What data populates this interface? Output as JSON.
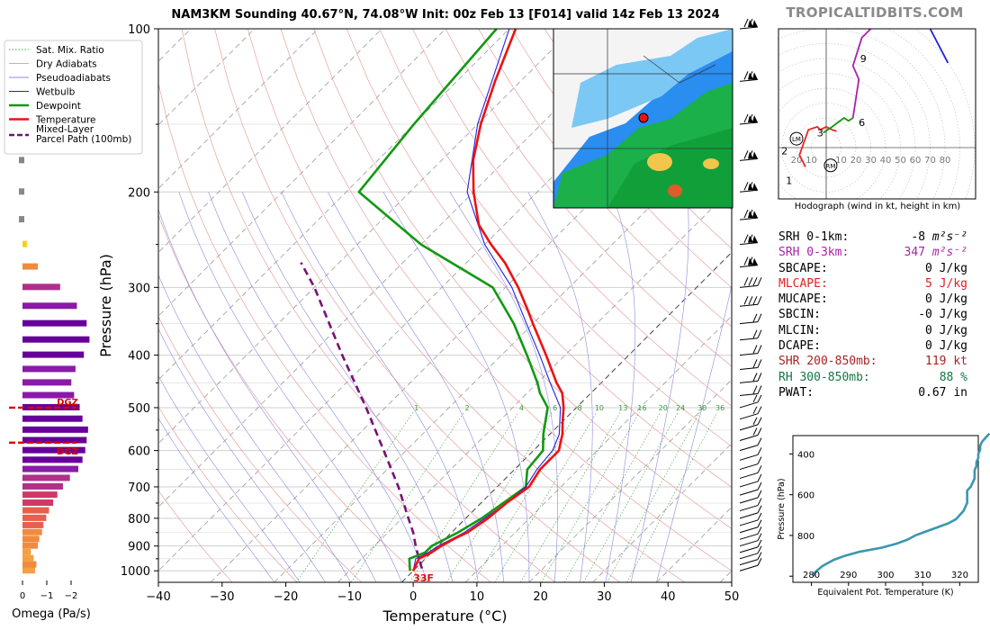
{
  "title": "NAM3KM Sounding 40.67°N, 74.08°W Init: 00z Feb 13 [F014] valid 14z Feb 13 2024",
  "brand": "TROPICALTIDBITS.COM",
  "colors": {
    "temperature": "#ee1111",
    "dewpoint": "#119911",
    "wetbulb": "#2222dd",
    "parcel": "#771177",
    "theta_e": "#3a97b0"
  },
  "legend": [
    {
      "label": "Sat. Mix. Ratio",
      "style": "dotted-green"
    },
    {
      "label": "Dry Adiabats",
      "style": "thin-red"
    },
    {
      "label": "Pseudoadiabats",
      "style": "thin-blue"
    },
    {
      "label": "Wetbulb",
      "style": "blue"
    },
    {
      "label": "Dewpoint",
      "style": "green"
    },
    {
      "label": "Temperature",
      "style": "red"
    },
    {
      "label": "Mixed-Layer\nParcel Path (100mb)",
      "style": "purple-dashed"
    }
  ],
  "skewt": {
    "ylabel": "Pressure (hPa)",
    "xlabel": "Temperature (°C)",
    "pressure_ticks": [
      100,
      200,
      300,
      400,
      500,
      600,
      700,
      800,
      900,
      1000
    ],
    "temperature_ticks": [
      -40,
      -30,
      -20,
      -10,
      0,
      10,
      20,
      30,
      40,
      50
    ],
    "surface_temp_label": "33F",
    "mixing_ratio_labels": [
      "1",
      "2",
      "4",
      "6",
      "8",
      "10",
      "13",
      "16",
      "20",
      "24",
      "30",
      "36"
    ]
  },
  "omega": {
    "xlabel": "Omega (Pa/s)",
    "ticks": [
      "0",
      "−1",
      "−2"
    ],
    "dgz_label": "DGZ"
  },
  "hodograph": {
    "caption": "Hodograph (wind in kt, height in km)",
    "ring_labels": [
      "20",
      "10",
      "10",
      "20",
      "30",
      "40",
      "50",
      "60",
      "70",
      "80"
    ],
    "height_labels": [
      "1",
      "2",
      "3",
      "6",
      "9"
    ],
    "markers": [
      "LM",
      "RM"
    ]
  },
  "indices": [
    {
      "label": "SRH 0-1km:",
      "value": "-8",
      "unit": "m²s⁻²",
      "color": "#000000"
    },
    {
      "label": "SRH 0-3km:",
      "value": "347",
      "unit": "m²s⁻²",
      "color": "#aa22aa"
    },
    {
      "label": "SBCAPE:",
      "value": "0",
      "unit": "J/kg",
      "color": "#000000"
    },
    {
      "label": "MLCAPE:",
      "value": "5",
      "unit": "J/kg",
      "color": "#dd2222"
    },
    {
      "label": "MUCAPE:",
      "value": "0",
      "unit": "J/kg",
      "color": "#000000"
    },
    {
      "label": "SBCIN:",
      "value": "-0",
      "unit": "J/kg",
      "color": "#000000"
    },
    {
      "label": "MLCIN:",
      "value": "0",
      "unit": "J/kg",
      "color": "#000000"
    },
    {
      "label": "DCAPE:",
      "value": "0",
      "unit": "J/kg",
      "color": "#000000"
    },
    {
      "label": "SHR 200-850mb:",
      "value": "119",
      "unit": "kt",
      "color": "#aa2222"
    },
    {
      "label": "RH 300-850mb:",
      "value": "88",
      "unit": "%",
      "color": "#117744"
    },
    {
      "label": "PWAT:",
      "value": "0.67",
      "unit": "in",
      "color": "#000000"
    }
  ],
  "chart_data": [
    {
      "type": "line",
      "name": "skew-t",
      "title": "NAM3KM Sounding 40.67°N, 74.08°W Init: 00z Feb 13 [F014] valid 14z Feb 13 2024",
      "xlabel": "Temperature (°C)",
      "ylabel": "Pressure (hPa)",
      "xlim": [
        -40,
        50
      ],
      "ylim": [
        1050,
        100
      ],
      "yscale": "log",
      "skew": "45°",
      "series": [
        {
          "name": "Temperature",
          "points": [
            [
              1000,
              0
            ],
            [
              950,
              -1
            ],
            [
              925,
              0
            ],
            [
              900,
              0.5
            ],
            [
              870,
              1.5
            ],
            [
              850,
              2.5
            ],
            [
              800,
              3.5
            ],
            [
              750,
              4
            ],
            [
              700,
              5
            ],
            [
              650,
              4
            ],
            [
              600,
              4
            ],
            [
              580,
              3
            ],
            [
              560,
              2
            ],
            [
              530,
              0
            ],
            [
              500,
              -2
            ],
            [
              470,
              -4.5
            ],
            [
              450,
              -7
            ],
            [
              400,
              -13
            ],
            [
              350,
              -20
            ],
            [
              330,
              -23
            ],
            [
              300,
              -28
            ],
            [
              270,
              -34
            ],
            [
              250,
              -39
            ],
            [
              230,
              -44
            ],
            [
              200,
              -50
            ],
            [
              175,
              -55
            ],
            [
              150,
              -59.5
            ],
            [
              125,
              -64
            ],
            [
              100,
              -69
            ]
          ]
        },
        {
          "name": "Wetbulb",
          "points": [
            [
              1000,
              0
            ],
            [
              950,
              -1.5
            ],
            [
              925,
              -0.5
            ],
            [
              900,
              0
            ],
            [
              850,
              2
            ],
            [
              800,
              3
            ],
            [
              750,
              4
            ],
            [
              700,
              4.5
            ],
            [
              650,
              3.5
            ],
            [
              600,
              3
            ],
            [
              560,
              1.5
            ],
            [
              500,
              -2.5
            ],
            [
              450,
              -8
            ],
            [
              400,
              -14
            ],
            [
              350,
              -21
            ],
            [
              300,
              -29
            ],
            [
              250,
              -40
            ],
            [
              200,
              -51
            ],
            [
              150,
              -60
            ],
            [
              100,
              -70
            ]
          ]
        },
        {
          "name": "Dewpoint",
          "points": [
            [
              1000,
              -0.5
            ],
            [
              950,
              -2.5
            ],
            [
              925,
              -1
            ],
            [
              900,
              -1
            ],
            [
              850,
              1
            ],
            [
              800,
              2.5
            ],
            [
              750,
              3.5
            ],
            [
              700,
              4.5
            ],
            [
              650,
              2
            ],
            [
              600,
              1.5
            ],
            [
              560,
              -1
            ],
            [
              500,
              -4.5
            ],
            [
              470,
              -8
            ],
            [
              450,
              -10
            ],
            [
              400,
              -16
            ],
            [
              350,
              -23
            ],
            [
              300,
              -32
            ],
            [
              250,
              -50
            ],
            [
              200,
              -68
            ],
            [
              150,
              -70
            ],
            [
              100,
              -72
            ]
          ]
        },
        {
          "name": "Mixed-Layer Parcel Path (100mb)",
          "points": [
            [
              990,
              1
            ],
            [
              950,
              -1
            ],
            [
              900,
              -3.5
            ],
            [
              850,
              -6
            ],
            [
              800,
              -9
            ],
            [
              700,
              -15.5
            ],
            [
              600,
              -23.5
            ],
            [
              500,
              -33
            ],
            [
              400,
              -45
            ],
            [
              300,
              -60
            ],
            [
              270,
              -66
            ]
          ]
        }
      ],
      "annotations": [
        "33F"
      ]
    },
    {
      "type": "bar",
      "name": "omega",
      "xlabel": "Omega (Pa/s)",
      "xticks": [
        0,
        -1,
        -2
      ],
      "levels_hpa": [
        1000,
        975,
        950,
        925,
        900,
        875,
        850,
        825,
        800,
        775,
        750,
        725,
        700,
        675,
        650,
        625,
        600,
        575,
        550,
        525,
        500,
        475,
        450,
        425,
        400,
        375,
        350,
        325,
        300,
        275,
        250,
        225,
        200,
        175,
        150,
        125
      ],
      "values": [
        -0.45,
        -0.5,
        -0.4,
        -0.3,
        -0.55,
        -0.6,
        -0.7,
        -0.75,
        -0.85,
        -0.95,
        -1.1,
        -1.25,
        -1.45,
        -1.7,
        -2.0,
        -2.15,
        -2.25,
        -2.3,
        -2.35,
        -2.15,
        -2.05,
        -1.85,
        -1.75,
        -1.9,
        -2.2,
        -2.4,
        -2.3,
        -1.95,
        -1.35,
        -0.55,
        -0.1,
        -0.05,
        -0.05,
        -0.1,
        -0.1,
        -0.05
      ],
      "annotations": [
        "DGZ",
        "DGZ"
      ]
    },
    {
      "type": "line",
      "name": "hodograph",
      "xlabel": "",
      "ylabel": "",
      "series": [
        {
          "name": "0-3 km",
          "points": [
            [
              -14,
              -13
            ],
            [
              -18,
              -5
            ],
            [
              -12,
              12
            ],
            [
              -6,
              14
            ],
            [
              -4,
              12
            ],
            [
              0,
              14
            ],
            [
              4,
              12
            ],
            [
              7,
              11
            ]
          ]
        },
        {
          "name": "3-6 km",
          "points": [
            [
              -2,
              10
            ],
            [
              4,
              14
            ],
            [
              12,
              20
            ],
            [
              15,
              18
            ],
            [
              18,
              20
            ]
          ]
        },
        {
          "name": "6-9 km",
          "points": [
            [
              18,
              20
            ],
            [
              22,
              46
            ],
            [
              18,
              55
            ],
            [
              24,
              74
            ],
            [
              32,
              82
            ]
          ]
        },
        {
          "name": "9-12 km",
          "points": [
            [
              32,
              82
            ],
            [
              40,
              92
            ],
            [
              58,
              93
            ],
            [
              70,
              80
            ],
            [
              82,
              57
            ]
          ]
        }
      ],
      "markers": [
        "LM",
        "RM"
      ]
    },
    {
      "type": "line",
      "name": "theta-e profile",
      "xlabel": "Equivalent Pot. Temperature (K)",
      "ylabel": "Pressure (hPa)",
      "xlim": [
        275,
        325
      ],
      "ylim": [
        1000,
        300
      ],
      "xticks": [
        280,
        290,
        300,
        310,
        320
      ],
      "yticks": [
        400,
        600,
        800
      ],
      "series": [
        {
          "name": "theta-e",
          "points": [
            [
              1000,
              280.5
            ],
            [
              980,
              281
            ],
            [
              950,
              283
            ],
            [
              920,
              286
            ],
            [
              900,
              289
            ],
            [
              880,
              293
            ],
            [
              860,
              299
            ],
            [
              840,
              303
            ],
            [
              820,
              306
            ],
            [
              800,
              308
            ],
            [
              780,
              311
            ],
            [
              760,
              314
            ],
            [
              740,
              317
            ],
            [
              720,
              319
            ],
            [
              700,
              320
            ],
            [
              680,
              321
            ],
            [
              660,
              321.5
            ],
            [
              640,
              322
            ],
            [
              620,
              322
            ],
            [
              600,
              322
            ],
            [
              580,
              322
            ],
            [
              560,
              323
            ],
            [
              540,
              323.5
            ],
            [
              520,
              324
            ],
            [
              500,
              324
            ],
            [
              480,
              324
            ],
            [
              460,
              324.5
            ],
            [
              440,
              324.5
            ],
            [
              420,
              325
            ],
            [
              400,
              325
            ],
            [
              380,
              325.5
            ],
            [
              360,
              325.5
            ],
            [
              340,
              326
            ],
            [
              320,
              327
            ],
            [
              300,
              328
            ]
          ]
        }
      ]
    }
  ]
}
